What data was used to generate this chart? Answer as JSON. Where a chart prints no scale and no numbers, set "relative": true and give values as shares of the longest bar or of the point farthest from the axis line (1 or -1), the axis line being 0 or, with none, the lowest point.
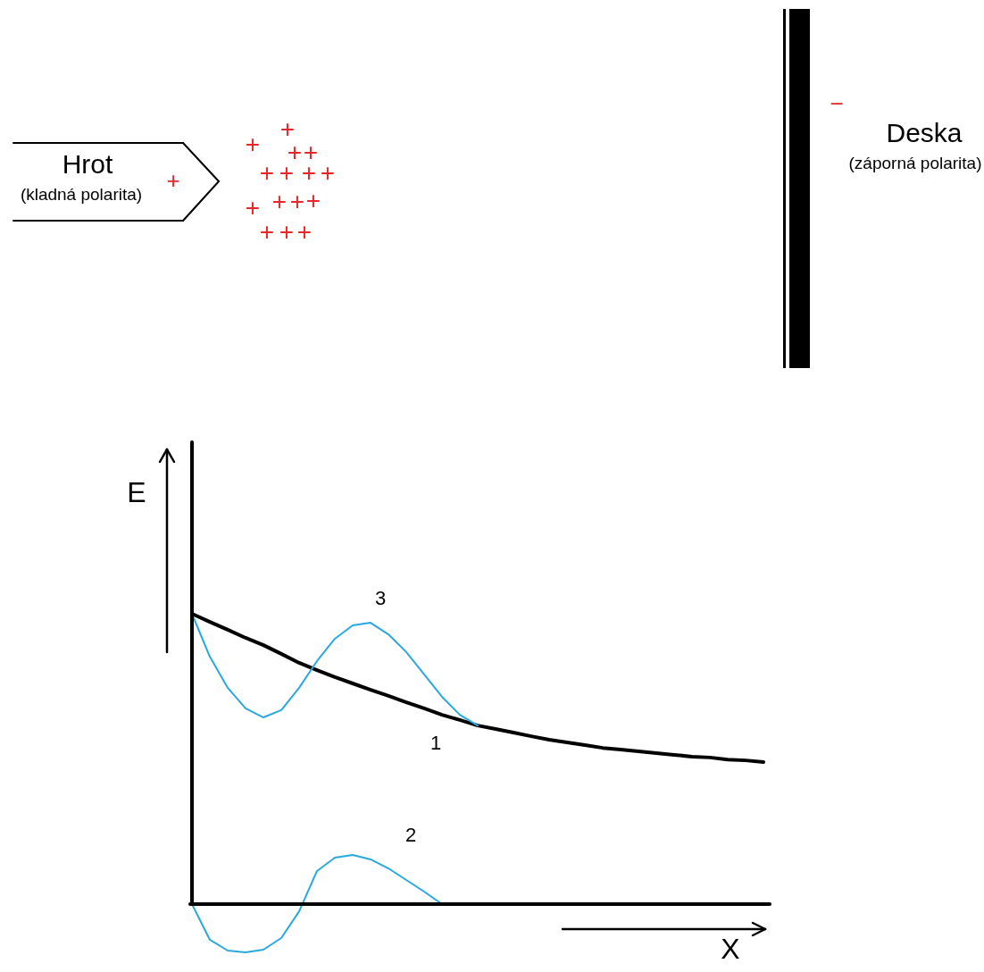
{
  "chart_data": {
    "type": "line",
    "relative": true,
    "xlabel": "X",
    "ylabel": "E",
    "categories": [
      null,
      null,
      null,
      null,
      null,
      null,
      null,
      null,
      null,
      null,
      null,
      null,
      null,
      null,
      null,
      null,
      null,
      null,
      null,
      null,
      null,
      null,
      null,
      null,
      null,
      null,
      null,
      null,
      null,
      null,
      null,
      null,
      null
    ],
    "series": [
      {
        "name": "1",
        "color": "#000000",
        "values": [
          1.0,
          0.972,
          0.945,
          0.917,
          0.892,
          0.862,
          0.831,
          0.806,
          0.782,
          0.76,
          0.738,
          0.717,
          0.695,
          0.674,
          0.652,
          0.634,
          0.615,
          0.603,
          0.591,
          0.578,
          0.566,
          0.557,
          0.548,
          0.538,
          0.532,
          0.526,
          0.52,
          0.514,
          0.508,
          0.505,
          0.498,
          0.495,
          0.489
        ]
      },
      {
        "name": "2",
        "color": "#29a8e0",
        "values": [
          0,
          -0.123,
          -0.16,
          -0.166,
          -0.157,
          -0.117,
          -0.025,
          0.114,
          0.16,
          0.169,
          0.154,
          0.123,
          0.083,
          0.043,
          0,
          null,
          null,
          null,
          null,
          null,
          null,
          null,
          null,
          null,
          null,
          null,
          null,
          null,
          null,
          null,
          null,
          null,
          null
        ]
      },
      {
        "name": "3",
        "color": "#29a8e0",
        "values": [
          1.0,
          0.852,
          0.745,
          0.674,
          0.643,
          0.668,
          0.745,
          0.837,
          0.914,
          0.96,
          0.969,
          0.929,
          0.868,
          0.791,
          0.714,
          0.652,
          0.615,
          null,
          null,
          null,
          null,
          null,
          null,
          null,
          null,
          null,
          null,
          null,
          null,
          null,
          null,
          null,
          null
        ]
      }
    ],
    "annotations": [
      "Hrot",
      "(kladná polarita)",
      "+",
      "Deska",
      "(záporná polarita)",
      "−",
      "+",
      "+",
      "+",
      "+",
      "+",
      "+",
      "+",
      "+",
      "+",
      "+",
      "+",
      "+",
      "+",
      "+",
      "+"
    ]
  }
}
